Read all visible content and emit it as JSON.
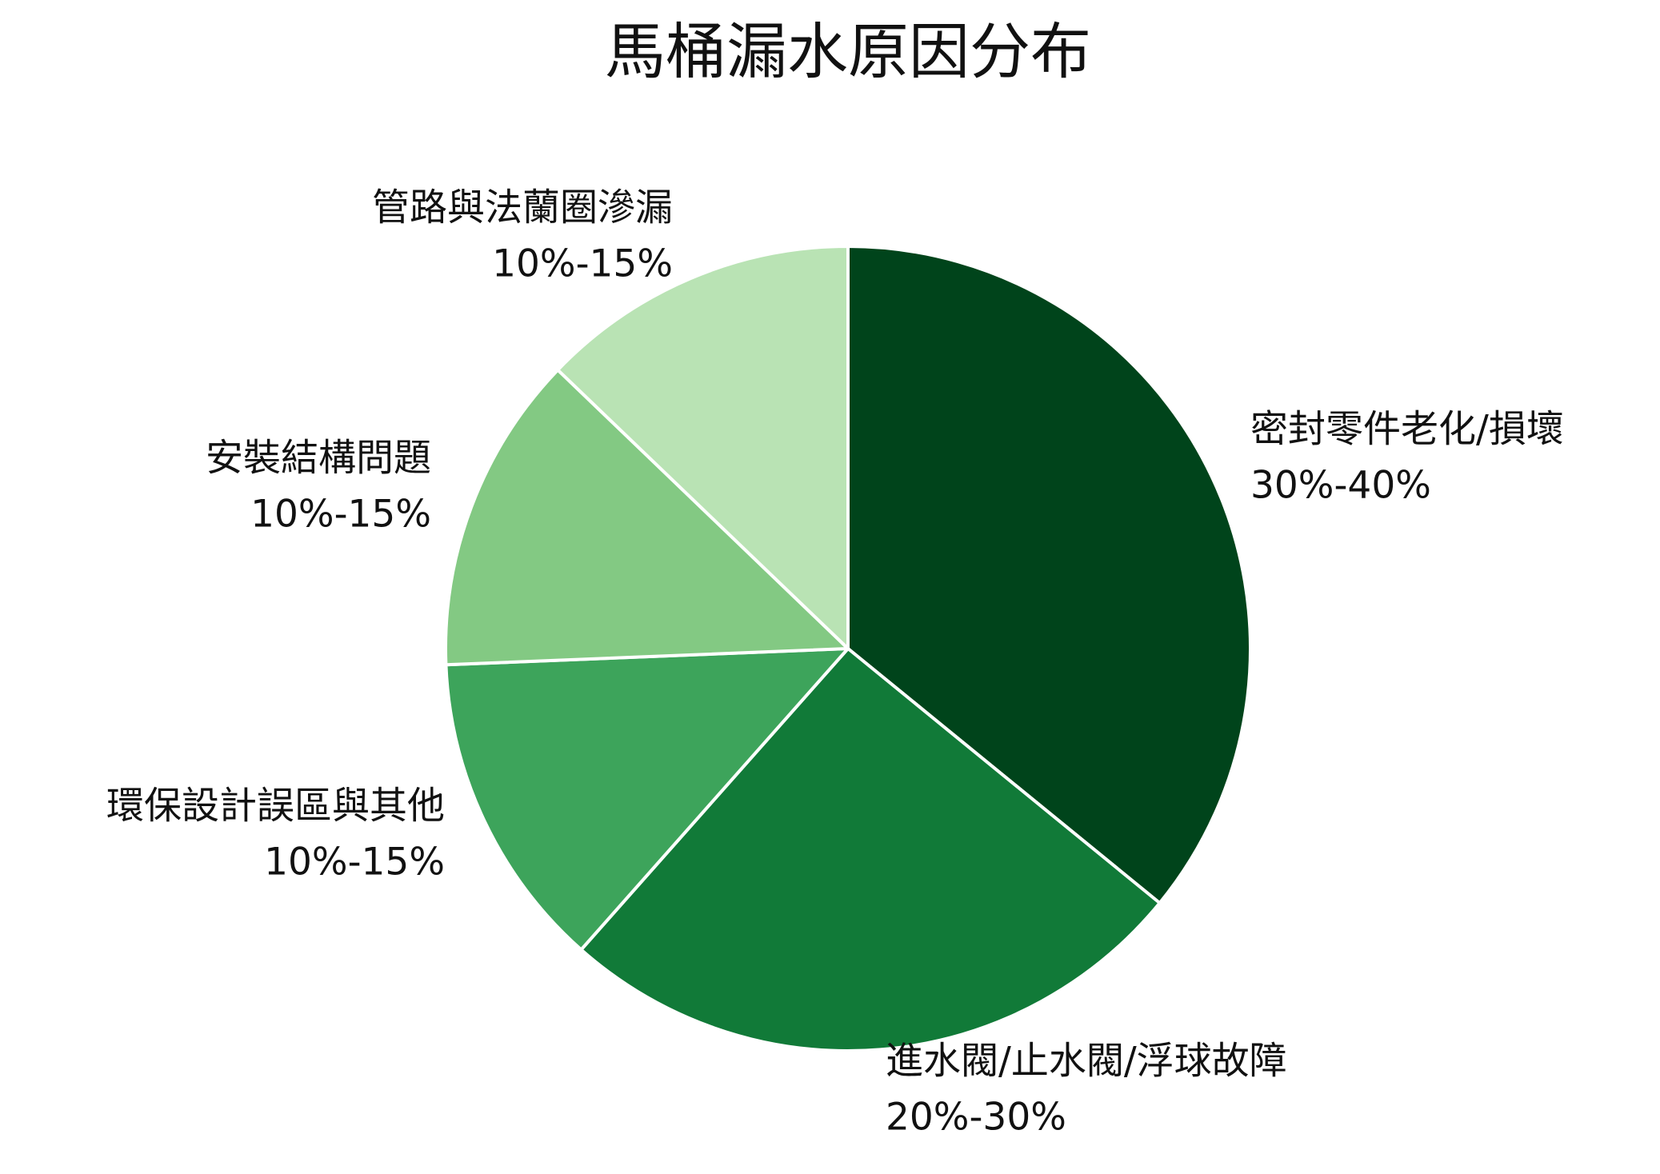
{
  "chart_data": {
    "type": "pie",
    "title": "馬桶漏水原因分布",
    "categories": [
      "密封零件老化/損壞",
      "進水閥/止水閥/浮球故障",
      "環保設計誤區與其他",
      "安裝結構問題",
      "管路與法蘭圈滲漏"
    ],
    "values": [
      35,
      25,
      12.5,
      12.5,
      12.5
    ],
    "value_labels": [
      "30%-40%",
      "20%-30%",
      "10%-15%",
      "10%-15%",
      "10%-15%"
    ],
    "colors": [
      "#00441b",
      "#117a38",
      "#3da45b",
      "#83c983",
      "#b9e3b4"
    ]
  }
}
